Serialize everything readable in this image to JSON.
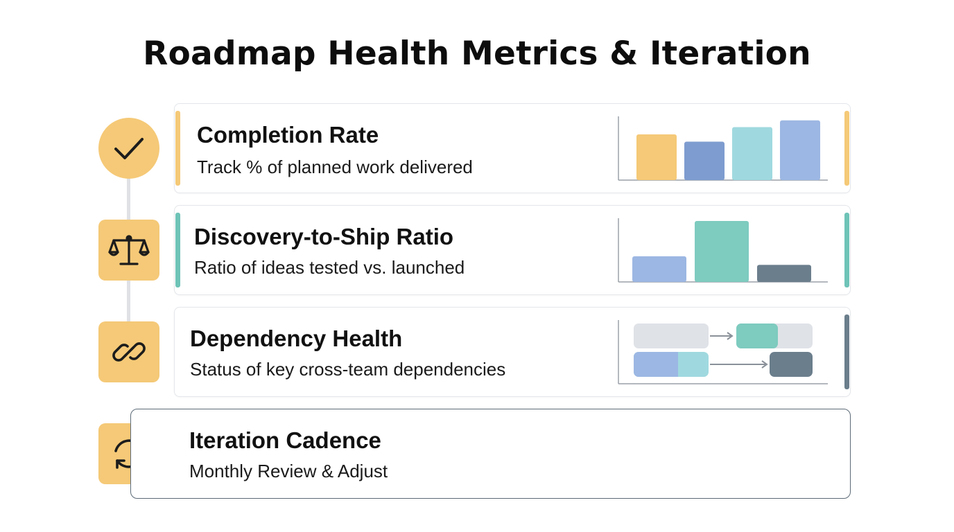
{
  "title": "Roadmap Health Metrics & Iteration",
  "colors": {
    "yellow": "#f5c977",
    "blue": "#7e9ccf",
    "light_blue": "#9cb7e3",
    "teal": "#7ecbbf",
    "light_teal": "#9fd9df",
    "slate": "#6b7e8c",
    "gray": "#dfe2e7",
    "axis": "#9aa1a8"
  },
  "steps": [
    {
      "icon": "checkmark-icon",
      "title": "Completion Rate",
      "subtitle": "Track % of planned work delivered",
      "accent": "#f5c977"
    },
    {
      "icon": "balance-scale-icon",
      "title": "Discovery-to-Ship Ratio",
      "subtitle": "Ratio of ideas tested vs. launched",
      "accent": "#6ec3b7"
    },
    {
      "icon": "chain-link-icon",
      "title": "Dependency Health",
      "subtitle": "Status of key cross-team dependencies",
      "accent": "#6b7e8c"
    },
    {
      "icon": "refresh-cycle-icon",
      "title": "Iteration Cadence",
      "subtitle": "Monthly Review & Adjust",
      "accent": "#5d6b78"
    }
  ],
  "chart_data": [
    {
      "type": "bar",
      "categories": [
        "",
        "",
        "",
        ""
      ],
      "values": [
        0.75,
        0.63,
        0.87,
        0.98
      ],
      "colors": [
        "#f5c977",
        "#7e9ccf",
        "#9fd9df",
        "#9cb7e3"
      ],
      "ylim": [
        0,
        1
      ]
    },
    {
      "type": "bar",
      "categories": [
        "",
        "",
        ""
      ],
      "values": [
        0.42,
        1.0,
        0.28
      ],
      "colors": [
        "#9cb7e3",
        "#7ecbbf",
        "#6b7e8c"
      ],
      "ylim": [
        0,
        1
      ]
    }
  ]
}
